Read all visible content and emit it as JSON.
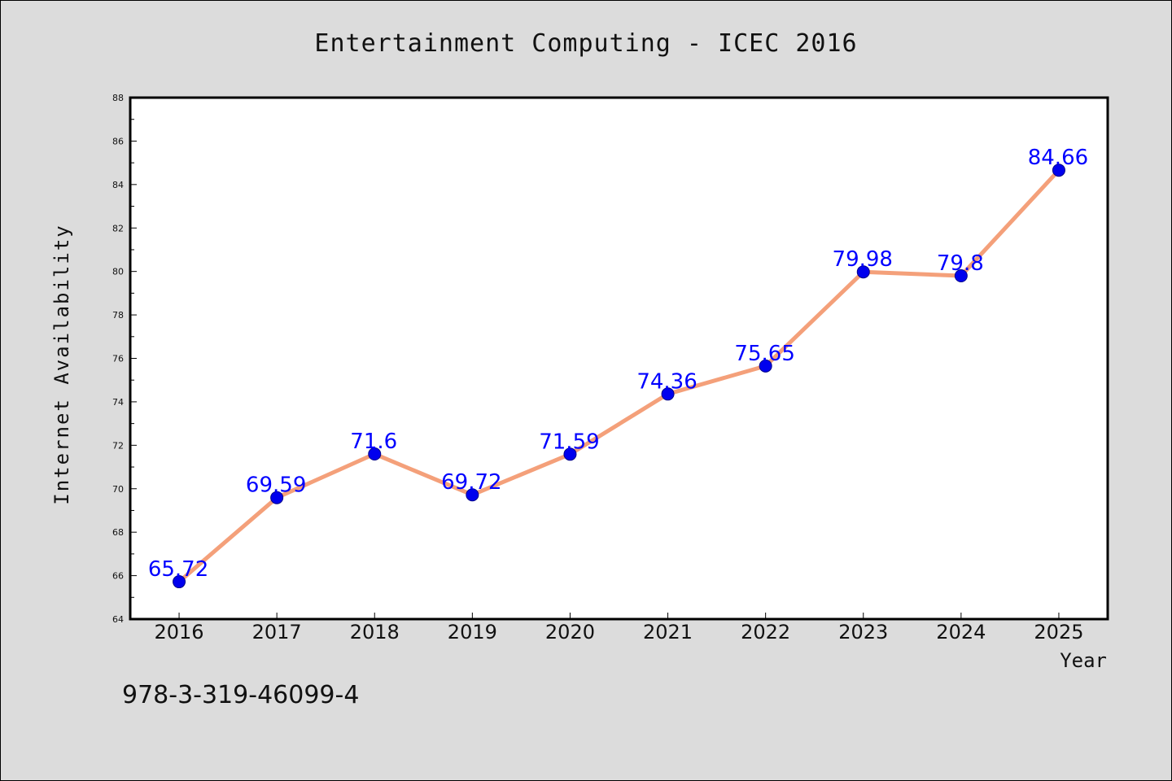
{
  "colors": {
    "background": "#dcdcdc",
    "plot_background": "#ffffff",
    "line": "#f4a07a",
    "marker": "#0000ee",
    "data_label": "#0000ff",
    "axis": "#000000",
    "text": "#111111"
  },
  "footer": {
    "isbn": "978-3-319-46099-4"
  },
  "chart_data": {
    "type": "line",
    "title": "Entertainment Computing - ICEC 2016",
    "xlabel": "Year",
    "ylabel": "Internet Availability",
    "x": [
      "2016",
      "2017",
      "2018",
      "2019",
      "2020",
      "2021",
      "2022",
      "2023",
      "2024",
      "2025"
    ],
    "series": [
      {
        "values": [
          65.72,
          69.59,
          71.6,
          69.72,
          71.59,
          74.36,
          75.65,
          79.98,
          79.8,
          84.66
        ]
      }
    ],
    "data_labels": [
      "65.72",
      "69.59",
      "71.6",
      "69.72",
      "71.59",
      "74.36",
      "75.65",
      "79.98",
      "79.8",
      "84.66"
    ],
    "ylim": [
      64,
      88
    ],
    "yticks": [
      64,
      66,
      68,
      70,
      72,
      74,
      76,
      78,
      80,
      82,
      84,
      86,
      88
    ],
    "grid": false,
    "legend": "none"
  }
}
